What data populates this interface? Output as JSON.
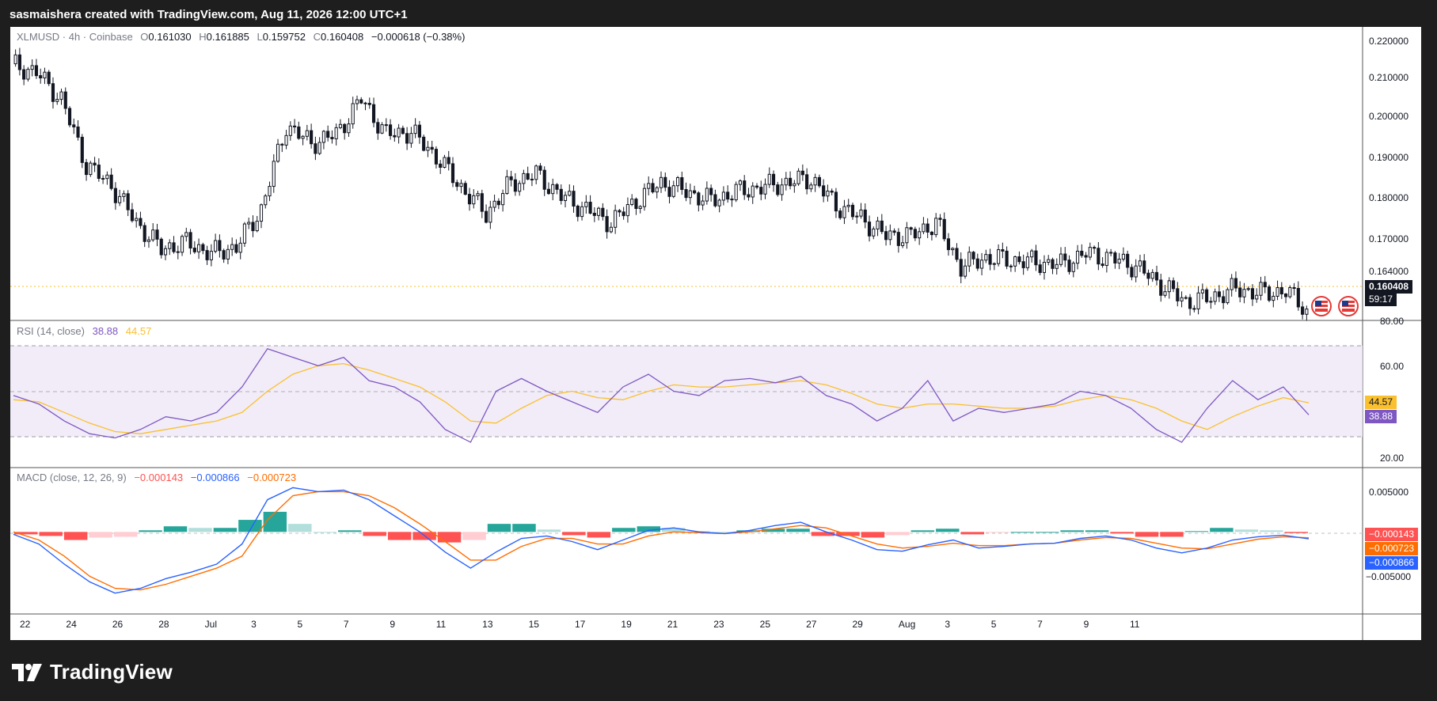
{
  "header": {
    "attribution": "sasmaishera created with TradingView.com, Aug 11, 2026 12:00 UTC+1"
  },
  "legend": {
    "symbol": "XLMUSD · 4h · Coinbase",
    "o_label": "O",
    "open": "0.161030",
    "h_label": "H",
    "high": "0.161885",
    "l_label": "L",
    "low": "0.159752",
    "c_label": "C",
    "close": "0.160408",
    "change": "−0.000618 (−0.38%)"
  },
  "price_axis": {
    "ticks": [
      "0.220000",
      "0.210000",
      "0.200000",
      "0.190000",
      "0.180000",
      "0.170000",
      "0.164000"
    ],
    "last_price": "0.160408",
    "countdown": "59:17"
  },
  "rsi": {
    "title": "RSI (14, close)",
    "rsi_value": "38.88",
    "ma_value": "44.57",
    "axis_ticks": [
      "80.00",
      "60.00",
      "20.00"
    ],
    "tag_ma": "44.57",
    "tag_rsi": "38.88"
  },
  "macd": {
    "title": "MACD (close, 12, 26, 9)",
    "hist_value": "−0.000143",
    "macd_value": "−0.000866",
    "signal_value": "−0.000723",
    "axis_ticks": [
      "0.005000",
      "−0.005000"
    ],
    "tag_hist": "−0.000143",
    "tag_signal": "−0.000723",
    "tag_macd": "−0.000866"
  },
  "time_axis": {
    "labels": [
      "22",
      "24",
      "26",
      "28",
      "Jul",
      "3",
      "5",
      "7",
      "9",
      "11",
      "13",
      "15",
      "17",
      "19",
      "21",
      "23",
      "25",
      "27",
      "29",
      "Aug",
      "3",
      "5",
      "7",
      "9",
      "11"
    ]
  },
  "brand": {
    "name": "TradingView"
  },
  "colors": {
    "up": "#ffffff",
    "down": "#131722",
    "rsi": "#7e57c2",
    "rsi_ma": "#fbc02d",
    "macd": "#2962ff",
    "signal": "#ff6d00",
    "hist_pos_strong": "#26a69a",
    "hist_pos_weak": "#b2dfdb",
    "hist_neg_strong": "#ff5252",
    "hist_neg_weak": "#ffcdd2"
  },
  "chart_data": [
    {
      "type": "candlestick",
      "title": "XLMUSD · 4h · Coinbase",
      "x_range": [
        "Jun 21, 2026",
        "Aug 11, 2026"
      ],
      "ylim": [
        0.158,
        0.224
      ],
      "points": [
        {
          "t": "Jun 21",
          "close": 0.214
        },
        {
          "t": "Jun 22",
          "close": 0.208
        },
        {
          "t": "Jun 23",
          "close": 0.193
        },
        {
          "t": "Jun 24",
          "close": 0.1885
        },
        {
          "t": "Jun 25",
          "close": 0.18
        },
        {
          "t": "Jun 26",
          "close": 0.174
        },
        {
          "t": "Jun 27",
          "close": 0.1755
        },
        {
          "t": "Jun 28",
          "close": 0.173
        },
        {
          "t": "Jun 29",
          "close": 0.1745
        },
        {
          "t": "Jun 30",
          "close": 0.183
        },
        {
          "t": "Jul 1",
          "close": 0.202
        },
        {
          "t": "Jul 2",
          "close": 0.198
        },
        {
          "t": "Jul 3",
          "close": 0.2
        },
        {
          "t": "Jul 4",
          "close": 0.208
        },
        {
          "t": "Jul 5",
          "close": 0.2
        },
        {
          "t": "Jul 6",
          "close": 0.2005
        },
        {
          "t": "Jul 7",
          "close": 0.195
        },
        {
          "t": "Jul 8",
          "close": 0.188
        },
        {
          "t": "Jul 9",
          "close": 0.182
        },
        {
          "t": "Jul 10",
          "close": 0.189
        },
        {
          "t": "Jul 11",
          "close": 0.191
        },
        {
          "t": "Jul 12",
          "close": 0.186
        },
        {
          "t": "Jul 13",
          "close": 0.183
        },
        {
          "t": "Jul 14",
          "close": 0.18
        },
        {
          "t": "Jul 15",
          "close": 0.185
        },
        {
          "t": "Jul 16",
          "close": 0.189
        },
        {
          "t": "Jul 17",
          "close": 0.187
        },
        {
          "t": "Jul 18",
          "close": 0.185
        },
        {
          "t": "Jul 19",
          "close": 0.187
        },
        {
          "t": "Jul 20",
          "close": 0.188
        },
        {
          "t": "Jul 21",
          "close": 0.189
        },
        {
          "t": "Jul 22",
          "close": 0.19
        },
        {
          "t": "Jul 23",
          "close": 0.184
        },
        {
          "t": "Jul 24",
          "close": 0.181
        },
        {
          "t": "Jul 25",
          "close": 0.177
        },
        {
          "t": "Jul 26",
          "close": 0.177
        },
        {
          "t": "Jul 27",
          "close": 0.18
        },
        {
          "t": "Jul 28",
          "close": 0.17
        },
        {
          "t": "Jul 29",
          "close": 0.172
        },
        {
          "t": "Jul 30",
          "close": 0.1715
        },
        {
          "t": "Jul 31",
          "close": 0.171
        },
        {
          "t": "Aug 1",
          "close": 0.1705
        },
        {
          "t": "Aug 2",
          "close": 0.173
        },
        {
          "t": "Aug 3",
          "close": 0.172
        },
        {
          "t": "Aug 4",
          "close": 0.17
        },
        {
          "t": "Aug 5",
          "close": 0.166
        },
        {
          "t": "Aug 6",
          "close": 0.162
        },
        {
          "t": "Aug 7",
          "close": 0.163
        },
        {
          "t": "Aug 8",
          "close": 0.165
        },
        {
          "t": "Aug 9",
          "close": 0.164
        },
        {
          "t": "Aug 10",
          "close": 0.1645
        },
        {
          "t": "Aug 11",
          "close": 0.160408
        }
      ]
    },
    {
      "type": "line",
      "title": "RSI (14, close)",
      "ylim": [
        20,
        80
      ],
      "bands": [
        30,
        50,
        70
      ],
      "x_range": [
        "Jun 21, 2026",
        "Aug 11, 2026"
      ],
      "series": [
        {
          "name": "RSI",
          "values": [
            48,
            44,
            36,
            30,
            28,
            32,
            38,
            36,
            40,
            52,
            70,
            66,
            62,
            66,
            55,
            52,
            45,
            32,
            26,
            50,
            56,
            50,
            45,
            40,
            52,
            58,
            50,
            48,
            55,
            56,
            54,
            57,
            48,
            44,
            36,
            42,
            55,
            36,
            42,
            40,
            42,
            44,
            50,
            48,
            42,
            32,
            26,
            42,
            55,
            46,
            52,
            38.88
          ]
        },
        {
          "name": "MA",
          "values": [
            46,
            45,
            40,
            35,
            31,
            30,
            32,
            34,
            36,
            40,
            50,
            58,
            62,
            63,
            60,
            56,
            52,
            45,
            36,
            35,
            42,
            48,
            50,
            47,
            46,
            50,
            53,
            52,
            52,
            53,
            54,
            55,
            53,
            49,
            44,
            42,
            44,
            44,
            43,
            42,
            42,
            43,
            46,
            48,
            46,
            42,
            36,
            32,
            38,
            43,
            47,
            44.57
          ]
        }
      ]
    },
    {
      "type": "line",
      "title": "MACD (close, 12, 26, 9)",
      "ylim": [
        -0.0095,
        0.0075
      ],
      "x_range": [
        "Jun 21, 2026",
        "Aug 11, 2026"
      ],
      "series": [
        {
          "name": "MACD",
          "values": [
            -0.0003,
            -0.0015,
            -0.004,
            -0.0062,
            -0.0076,
            -0.007,
            -0.0058,
            -0.005,
            -0.004,
            -0.0015,
            0.004,
            0.0055,
            0.005,
            0.0052,
            0.004,
            0.002,
            0.0,
            -0.0025,
            -0.0045,
            -0.0025,
            -0.0008,
            -0.0005,
            -0.0012,
            -0.0022,
            -0.001,
            0.0002,
            0.0005,
            0.0,
            -0.0002,
            0.0002,
            0.0008,
            0.0012,
            0.0,
            -0.001,
            -0.0022,
            -0.0024,
            -0.0016,
            -0.001,
            -0.002,
            -0.0018,
            -0.0015,
            -0.0014,
            -0.0008,
            -0.0005,
            -0.001,
            -0.002,
            -0.0026,
            -0.002,
            -0.001,
            -0.0006,
            -0.0004,
            -0.000866
          ]
        },
        {
          "name": "Signal",
          "values": [
            0.0,
            -0.001,
            -0.003,
            -0.0055,
            -0.007,
            -0.0072,
            -0.0065,
            -0.0055,
            -0.0045,
            -0.003,
            0.0015,
            0.0045,
            0.005,
            0.005,
            0.0045,
            0.003,
            0.001,
            -0.0012,
            -0.0035,
            -0.0035,
            -0.0018,
            -0.0008,
            -0.0008,
            -0.0015,
            -0.0015,
            -0.0005,
            0.0,
            -0.0001,
            -0.0002,
            0.0,
            0.0004,
            0.0008,
            0.0005,
            -0.0005,
            -0.0015,
            -0.002,
            -0.0018,
            -0.0014,
            -0.0017,
            -0.0017,
            -0.0015,
            -0.0014,
            -0.001,
            -0.0007,
            -0.0008,
            -0.0014,
            -0.002,
            -0.0021,
            -0.0015,
            -0.0009,
            -0.0006,
            -0.000723
          ]
        },
        {
          "name": "Histogram",
          "values": [
            -0.0003,
            -0.0005,
            -0.001,
            -0.0007,
            -0.0006,
            0.0002,
            0.0007,
            0.0005,
            0.0005,
            0.0015,
            0.0025,
            0.001,
            0.0,
            0.0002,
            -0.0005,
            -0.001,
            -0.001,
            -0.0013,
            -0.001,
            0.001,
            0.001,
            0.0003,
            -0.0004,
            -0.0007,
            0.0005,
            0.0007,
            0.0005,
            0.0001,
            0.0,
            0.0002,
            0.0004,
            0.0004,
            -0.0005,
            -0.0005,
            -0.0007,
            -0.0004,
            0.0002,
            0.0004,
            -0.0003,
            -0.0001,
            0.0,
            0.0,
            0.0002,
            0.0002,
            -0.0002,
            -0.0006,
            -0.0006,
            0.0001,
            0.0005,
            0.0003,
            0.0002,
            -0.000143
          ]
        }
      ]
    }
  ]
}
